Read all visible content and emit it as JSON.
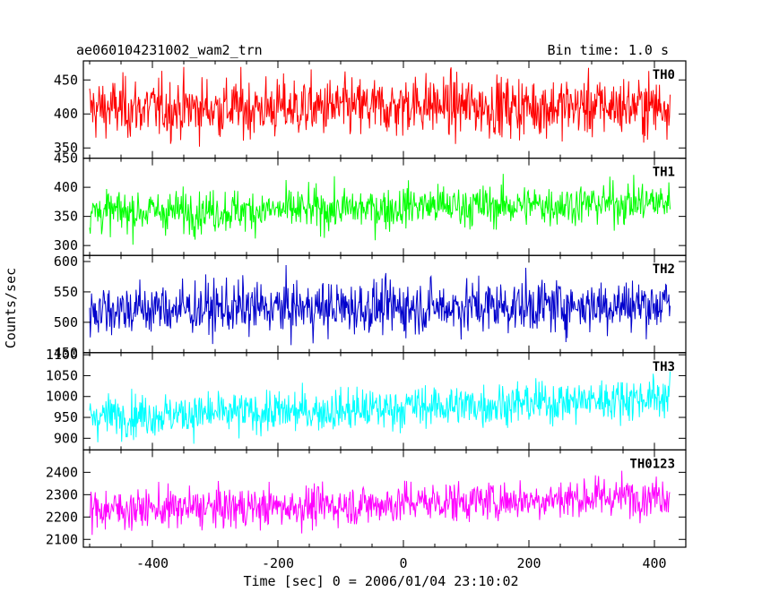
{
  "chart_data": {
    "type": "line",
    "title": "ae060104231002_wam2_trn",
    "subtitle": "Bin time: 1.0 s",
    "xlabel": "Time [sec] 0 = 2006/01/04 23:10:02",
    "ylabel": "Counts/sec",
    "xlim": [
      -510,
      450
    ],
    "x_ticks": [
      -400,
      -200,
      0,
      200,
      400
    ],
    "x_range": [
      -500,
      425
    ],
    "grid": false,
    "panels": [
      {
        "name": "TH0",
        "color": "#ff0000",
        "ylim": [
          335,
          478
        ],
        "yticks": [
          350,
          400,
          450
        ],
        "mean_start": 408,
        "mean_end": 412,
        "spread": 22,
        "step_at": 0,
        "step_size": 8
      },
      {
        "name": "TH1",
        "color": "#00ff00",
        "ylim": [
          283,
          450
        ],
        "yticks": [
          300,
          350,
          400,
          450
        ],
        "mean_start": 358,
        "mean_end": 375,
        "spread": 18,
        "step_at": 0,
        "step_size": 6
      },
      {
        "name": "TH2",
        "color": "#0000cc",
        "ylim": [
          450,
          610
        ],
        "yticks": [
          450,
          500,
          550,
          600
        ],
        "mean_start": 522,
        "mean_end": 530,
        "spread": 22,
        "step_at": 0,
        "step_size": 0
      },
      {
        "name": "TH3",
        "color": "#00ffff",
        "ylim": [
          872,
          1105
        ],
        "yticks": [
          900,
          950,
          1000,
          1050,
          1100
        ],
        "mean_start": 955,
        "mean_end": 1000,
        "spread": 25,
        "step_at": 0,
        "step_size": 5
      },
      {
        "name": "TH0123",
        "color": "#ff00ff",
        "ylim": [
          2065,
          2500
        ],
        "yticks": [
          2100,
          2200,
          2300,
          2400
        ],
        "mean_start": 2235,
        "mean_end": 2300,
        "spread": 45,
        "step_at": 0,
        "step_size": 10
      }
    ]
  }
}
